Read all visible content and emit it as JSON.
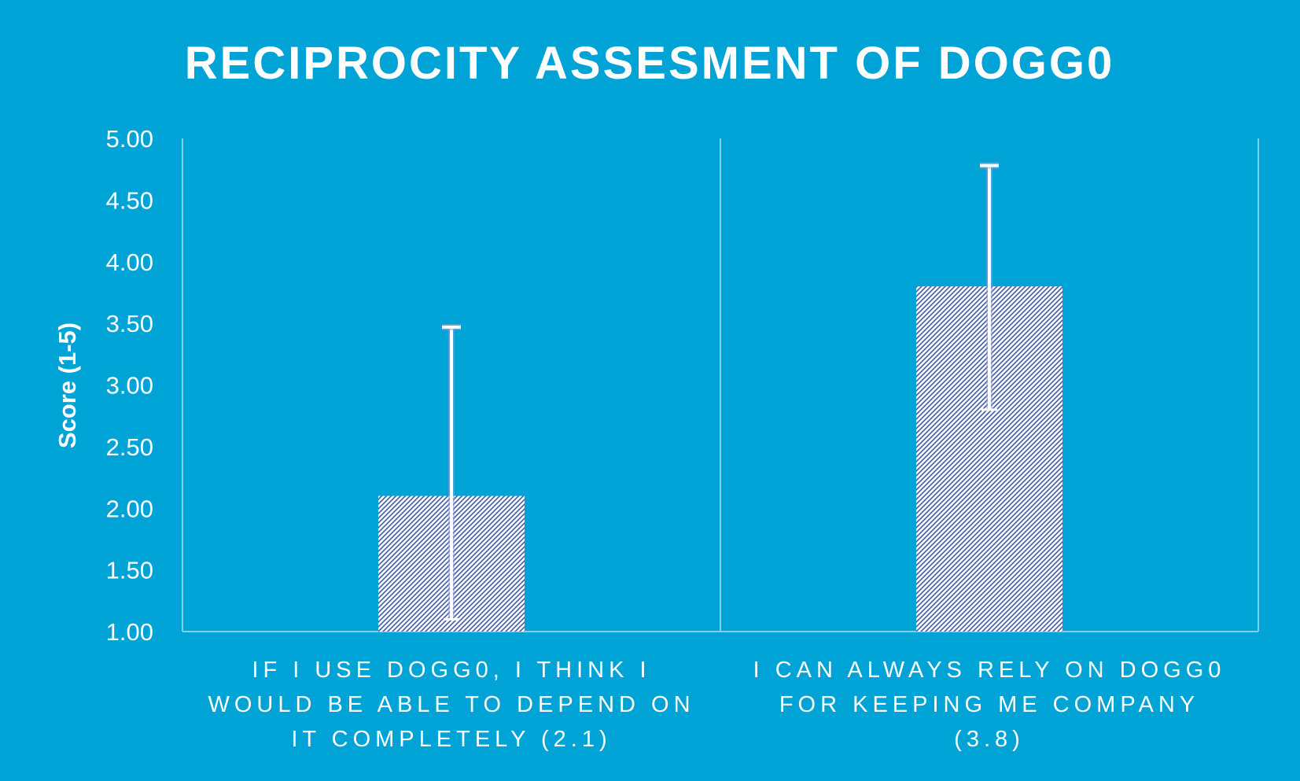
{
  "chart_data": {
    "type": "bar",
    "title": "RECIPROCITY ASSESMENT OF DOGG0",
    "xlabel": "",
    "ylabel": "Score (1-5)",
    "ylim": [
      1.0,
      5.0
    ],
    "yticks": [
      "1.00",
      "1.50",
      "2.00",
      "2.50",
      "3.00",
      "3.50",
      "4.00",
      "4.50",
      "5.00"
    ],
    "categories": [
      [
        "IF I USE DOGG0, I THINK I",
        "WOULD BE ABLE TO DEPEND ON",
        "IT COMPLETELY (2.1)"
      ],
      [
        "I CAN ALWAYS RELY ON DOGG0",
        "FOR KEEPING ME COMPANY",
        "(3.8)"
      ]
    ],
    "values": [
      2.1,
      3.8
    ],
    "error_bars": [
      {
        "low": 1.1,
        "high": 3.47
      },
      {
        "low": 2.8,
        "high": 4.78
      }
    ],
    "grid": "vertical separators",
    "legend": "none",
    "colors": {
      "background": "#00a3d6",
      "bar_fill": "#ffffff",
      "bar_hatch": "#3f5aa8",
      "axis": "#7fd0ec",
      "error_bar": "#ffffff",
      "text": "#ffffff"
    }
  }
}
